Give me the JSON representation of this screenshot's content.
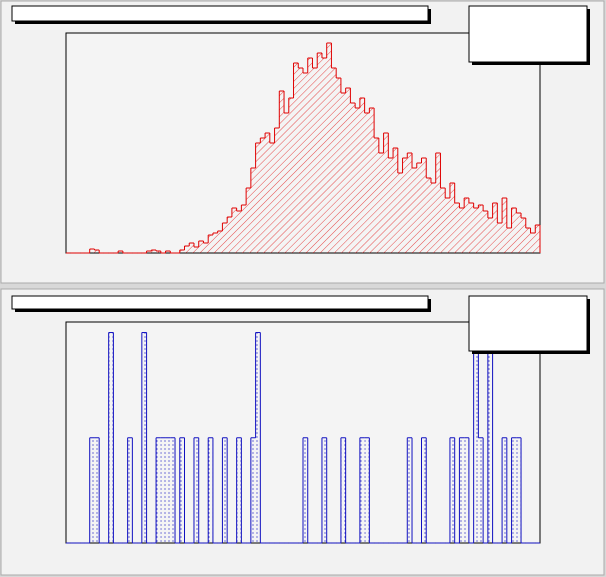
{
  "chart_data": [
    {
      "type": "histogram",
      "color": "#e00000",
      "fill": "hatch",
      "xlim": [
        0,
        100
      ],
      "ylim": [
        0,
        220
      ],
      "bins": [
        0,
        1,
        2,
        3,
        4,
        5,
        6,
        7,
        8,
        9,
        10,
        11,
        12,
        13,
        14,
        15,
        16,
        17,
        18,
        19,
        20,
        21,
        22,
        23,
        24,
        25,
        26,
        27,
        28,
        29,
        30,
        31,
        32,
        33,
        34,
        35,
        36,
        37,
        38,
        39,
        40,
        41,
        42,
        43,
        44,
        45,
        46,
        47,
        48,
        49,
        50,
        51,
        52,
        53,
        54,
        55,
        56,
        57,
        58,
        59,
        60,
        61,
        62,
        63,
        64,
        65,
        66,
        67,
        68,
        69,
        70,
        71,
        72,
        73,
        74,
        75,
        76,
        77,
        78,
        79,
        80,
        81,
        82,
        83,
        84,
        85,
        86,
        87,
        88,
        89,
        90,
        91,
        92,
        93,
        94,
        95,
        96,
        97,
        98,
        99,
        100
      ],
      "counts": [
        0,
        0,
        0,
        0,
        0,
        4,
        3,
        0,
        0,
        0,
        0,
        2,
        0,
        0,
        0,
        0,
        0,
        2,
        3,
        2,
        0,
        2,
        0,
        0,
        3,
        7,
        10,
        6,
        12,
        10,
        18,
        20,
        22,
        30,
        36,
        45,
        42,
        48,
        65,
        85,
        110,
        115,
        120,
        110,
        125,
        162,
        140,
        155,
        190,
        185,
        180,
        195,
        185,
        200,
        195,
        210,
        185,
        175,
        160,
        165,
        150,
        145,
        155,
        140,
        145,
        115,
        100,
        120,
        95,
        105,
        80,
        95,
        100,
        85,
        90,
        95,
        75,
        70,
        100,
        65,
        55,
        70,
        50,
        45,
        55,
        50,
        45,
        48,
        42,
        35,
        50,
        30,
        55,
        25,
        45,
        40,
        35,
        25,
        20,
        28
      ]
    },
    {
      "type": "histogram",
      "color": "#1010c0",
      "fill": "dots",
      "xlim": [
        0,
        100
      ],
      "ylim": [
        0,
        2.1
      ],
      "bins": [
        0,
        1,
        2,
        3,
        4,
        5,
        6,
        7,
        8,
        9,
        10,
        11,
        12,
        13,
        14,
        15,
        16,
        17,
        18,
        19,
        20,
        21,
        22,
        23,
        24,
        25,
        26,
        27,
        28,
        29,
        30,
        31,
        32,
        33,
        34,
        35,
        36,
        37,
        38,
        39,
        40,
        41,
        42,
        43,
        44,
        45,
        46,
        47,
        48,
        49,
        50,
        51,
        52,
        53,
        54,
        55,
        56,
        57,
        58,
        59,
        60,
        61,
        62,
        63,
        64,
        65,
        66,
        67,
        68,
        69,
        70,
        71,
        72,
        73,
        74,
        75,
        76,
        77,
        78,
        79,
        80,
        81,
        82,
        83,
        84,
        85,
        86,
        87,
        88,
        89,
        90,
        91,
        92,
        93,
        94,
        95,
        96,
        97,
        98,
        99,
        100
      ],
      "counts": [
        0,
        0,
        0,
        0,
        0,
        1,
        1,
        0,
        0,
        2,
        0,
        0,
        0,
        1,
        0,
        0,
        2,
        0,
        0,
        1,
        1,
        1,
        1,
        0,
        1,
        0,
        0,
        1,
        0,
        0,
        1,
        0,
        0,
        1,
        0,
        0,
        1,
        0,
        0,
        1,
        2,
        0,
        0,
        0,
        0,
        0,
        0,
        0,
        0,
        0,
        1,
        0,
        0,
        0,
        1,
        0,
        0,
        0,
        1,
        0,
        0,
        0,
        1,
        1,
        0,
        0,
        0,
        0,
        0,
        0,
        0,
        0,
        1,
        0,
        0,
        1,
        0,
        0,
        0,
        0,
        0,
        1,
        0,
        1,
        1,
        0,
        2,
        1,
        0,
        2,
        0,
        0,
        1,
        0,
        1,
        1,
        0,
        0,
        0,
        0
      ]
    }
  ]
}
